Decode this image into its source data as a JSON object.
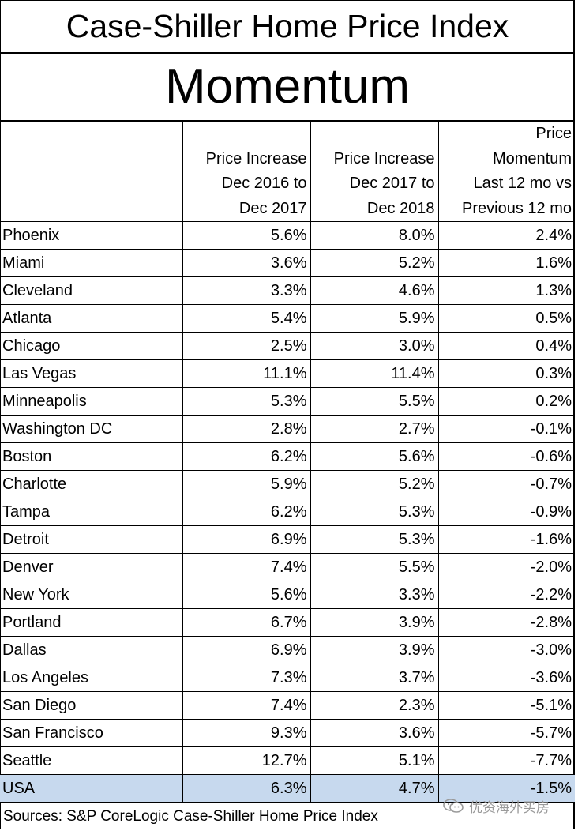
{
  "title": "Case-Shiller Home Price Index",
  "subtitle": "Momentum",
  "columns": [
    "",
    "Price Increase Dec 2016 to Dec 2017",
    "Price Increase Dec 2017 to Dec 2018",
    "Price Momentum Last 12 mo vs Previous 12 mo"
  ],
  "column_lines": [
    [],
    [
      "Price Increase",
      "Dec 2016 to",
      "Dec 2017"
    ],
    [
      "Price Increase",
      "Dec 2017 to",
      "Dec 2018"
    ],
    [
      "Price",
      "Momentum",
      "Last 12 mo vs",
      "Previous 12 mo"
    ]
  ],
  "rows": [
    [
      "Phoenix",
      "5.6%",
      "8.0%",
      "2.4%"
    ],
    [
      "Miami",
      "3.6%",
      "5.2%",
      "1.6%"
    ],
    [
      "Cleveland",
      "3.3%",
      "4.6%",
      "1.3%"
    ],
    [
      "Atlanta",
      "5.4%",
      "5.9%",
      "0.5%"
    ],
    [
      "Chicago",
      "2.5%",
      "3.0%",
      "0.4%"
    ],
    [
      "Las Vegas",
      "11.1%",
      "11.4%",
      "0.3%"
    ],
    [
      "Minneapolis",
      "5.3%",
      "5.5%",
      "0.2%"
    ],
    [
      "Washington DC",
      "2.8%",
      "2.7%",
      "-0.1%"
    ],
    [
      "Boston",
      "6.2%",
      "5.6%",
      "-0.6%"
    ],
    [
      "Charlotte",
      "5.9%",
      "5.2%",
      "-0.7%"
    ],
    [
      "Tampa",
      "6.2%",
      "5.3%",
      "-0.9%"
    ],
    [
      "Detroit",
      "6.9%",
      "5.3%",
      "-1.6%"
    ],
    [
      "Denver",
      "7.4%",
      "5.5%",
      "-2.0%"
    ],
    [
      "New York",
      "5.6%",
      "3.3%",
      "-2.2%"
    ],
    [
      "Portland",
      "6.7%",
      "3.9%",
      "-2.8%"
    ],
    [
      "Dallas",
      "6.9%",
      "3.9%",
      "-3.0%"
    ],
    [
      "Los Angeles",
      "7.3%",
      "3.7%",
      "-3.6%"
    ],
    [
      "San Diego",
      "7.4%",
      "2.3%",
      "-5.1%"
    ],
    [
      "San Francisco",
      "9.3%",
      "3.6%",
      "-5.7%"
    ],
    [
      "Seattle",
      "12.7%",
      "5.1%",
      "-7.7%"
    ]
  ],
  "summary_row": [
    "USA",
    "6.3%",
    "4.7%",
    "-1.5%"
  ],
  "summary_row_color": "#c7d9ee",
  "source": "Sources: S&P CoreLogic Case-Shiller Home Price Index",
  "watermark": {
    "text": "优资海外买房",
    "icon": "wechat-logo-icon"
  }
}
